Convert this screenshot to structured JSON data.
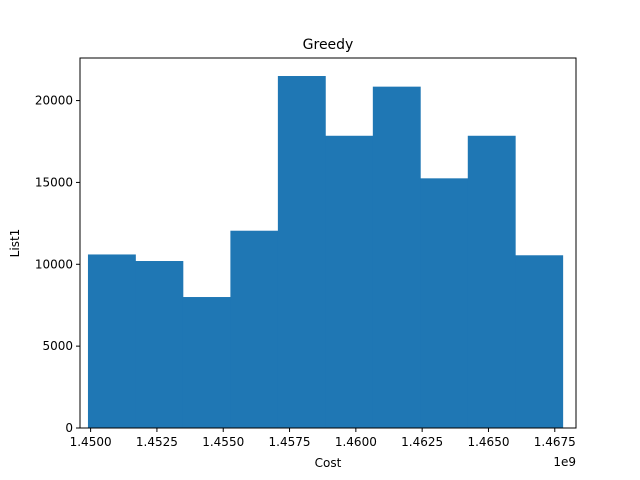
{
  "chart_data": {
    "type": "bar",
    "subtype": "histogram",
    "title": "Greedy",
    "xlabel": "Cost",
    "ylabel": "List1",
    "x_offset_label": "1e9",
    "xlim": [
      1.4496,
      1.4683
    ],
    "ylim": [
      0,
      22600
    ],
    "x_ticks": [
      1.45,
      1.4525,
      1.455,
      1.4575,
      1.46,
      1.4625,
      1.465,
      1.4675
    ],
    "x_tick_labels": [
      "1.4500",
      "1.4525",
      "1.4550",
      "1.4575",
      "1.4600",
      "1.4625",
      "1.4650",
      "1.4675"
    ],
    "y_ticks": [
      0,
      5000,
      10000,
      15000,
      20000
    ],
    "y_tick_labels": [
      "0",
      "5000",
      "10000",
      "15000",
      "20000"
    ],
    "bin_edges": [
      1.4499,
      1.45169,
      1.45348,
      1.45527,
      1.45706,
      1.45885,
      1.46064,
      1.46243,
      1.46422,
      1.46601,
      1.4678
    ],
    "values": [
      10600,
      10200,
      8000,
      12050,
      21500,
      17850,
      20850,
      15250,
      17850,
      10550
    ],
    "bar_color": "#1f77b4",
    "grid": false,
    "legend": "none"
  }
}
